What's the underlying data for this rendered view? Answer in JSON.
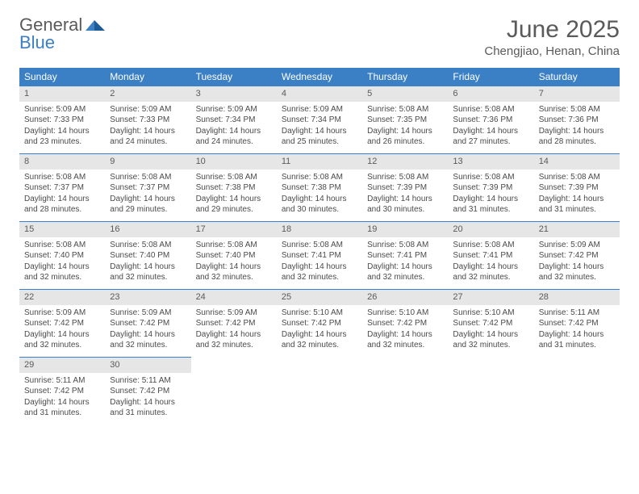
{
  "logo": {
    "textGray": "General",
    "textBlue": "Blue"
  },
  "title": "June 2025",
  "location": "Chengjiao, Henan, China",
  "colors": {
    "headerBlue": "#3b7fc4",
    "dayBarGray": "#e6e6e6",
    "textGray": "#5a5a5a",
    "bodyText": "#4a4a4a"
  },
  "dayHeaders": [
    "Sunday",
    "Monday",
    "Tuesday",
    "Wednesday",
    "Thursday",
    "Friday",
    "Saturday"
  ],
  "days": [
    {
      "n": "1",
      "sr": "5:09 AM",
      "ss": "7:33 PM",
      "dl": "14 hours and 23 minutes."
    },
    {
      "n": "2",
      "sr": "5:09 AM",
      "ss": "7:33 PM",
      "dl": "14 hours and 24 minutes."
    },
    {
      "n": "3",
      "sr": "5:09 AM",
      "ss": "7:34 PM",
      "dl": "14 hours and 24 minutes."
    },
    {
      "n": "4",
      "sr": "5:09 AM",
      "ss": "7:34 PM",
      "dl": "14 hours and 25 minutes."
    },
    {
      "n": "5",
      "sr": "5:08 AM",
      "ss": "7:35 PM",
      "dl": "14 hours and 26 minutes."
    },
    {
      "n": "6",
      "sr": "5:08 AM",
      "ss": "7:36 PM",
      "dl": "14 hours and 27 minutes."
    },
    {
      "n": "7",
      "sr": "5:08 AM",
      "ss": "7:36 PM",
      "dl": "14 hours and 28 minutes."
    },
    {
      "n": "8",
      "sr": "5:08 AM",
      "ss": "7:37 PM",
      "dl": "14 hours and 28 minutes."
    },
    {
      "n": "9",
      "sr": "5:08 AM",
      "ss": "7:37 PM",
      "dl": "14 hours and 29 minutes."
    },
    {
      "n": "10",
      "sr": "5:08 AM",
      "ss": "7:38 PM",
      "dl": "14 hours and 29 minutes."
    },
    {
      "n": "11",
      "sr": "5:08 AM",
      "ss": "7:38 PM",
      "dl": "14 hours and 30 minutes."
    },
    {
      "n": "12",
      "sr": "5:08 AM",
      "ss": "7:39 PM",
      "dl": "14 hours and 30 minutes."
    },
    {
      "n": "13",
      "sr": "5:08 AM",
      "ss": "7:39 PM",
      "dl": "14 hours and 31 minutes."
    },
    {
      "n": "14",
      "sr": "5:08 AM",
      "ss": "7:39 PM",
      "dl": "14 hours and 31 minutes."
    },
    {
      "n": "15",
      "sr": "5:08 AM",
      "ss": "7:40 PM",
      "dl": "14 hours and 32 minutes."
    },
    {
      "n": "16",
      "sr": "5:08 AM",
      "ss": "7:40 PM",
      "dl": "14 hours and 32 minutes."
    },
    {
      "n": "17",
      "sr": "5:08 AM",
      "ss": "7:40 PM",
      "dl": "14 hours and 32 minutes."
    },
    {
      "n": "18",
      "sr": "5:08 AM",
      "ss": "7:41 PM",
      "dl": "14 hours and 32 minutes."
    },
    {
      "n": "19",
      "sr": "5:08 AM",
      "ss": "7:41 PM",
      "dl": "14 hours and 32 minutes."
    },
    {
      "n": "20",
      "sr": "5:08 AM",
      "ss": "7:41 PM",
      "dl": "14 hours and 32 minutes."
    },
    {
      "n": "21",
      "sr": "5:09 AM",
      "ss": "7:42 PM",
      "dl": "14 hours and 32 minutes."
    },
    {
      "n": "22",
      "sr": "5:09 AM",
      "ss": "7:42 PM",
      "dl": "14 hours and 32 minutes."
    },
    {
      "n": "23",
      "sr": "5:09 AM",
      "ss": "7:42 PM",
      "dl": "14 hours and 32 minutes."
    },
    {
      "n": "24",
      "sr": "5:09 AM",
      "ss": "7:42 PM",
      "dl": "14 hours and 32 minutes."
    },
    {
      "n": "25",
      "sr": "5:10 AM",
      "ss": "7:42 PM",
      "dl": "14 hours and 32 minutes."
    },
    {
      "n": "26",
      "sr": "5:10 AM",
      "ss": "7:42 PM",
      "dl": "14 hours and 32 minutes."
    },
    {
      "n": "27",
      "sr": "5:10 AM",
      "ss": "7:42 PM",
      "dl": "14 hours and 32 minutes."
    },
    {
      "n": "28",
      "sr": "5:11 AM",
      "ss": "7:42 PM",
      "dl": "14 hours and 31 minutes."
    },
    {
      "n": "29",
      "sr": "5:11 AM",
      "ss": "7:42 PM",
      "dl": "14 hours and 31 minutes."
    },
    {
      "n": "30",
      "sr": "5:11 AM",
      "ss": "7:42 PM",
      "dl": "14 hours and 31 minutes."
    }
  ],
  "labels": {
    "sunrise": "Sunrise:",
    "sunset": "Sunset:",
    "daylight": "Daylight:"
  }
}
